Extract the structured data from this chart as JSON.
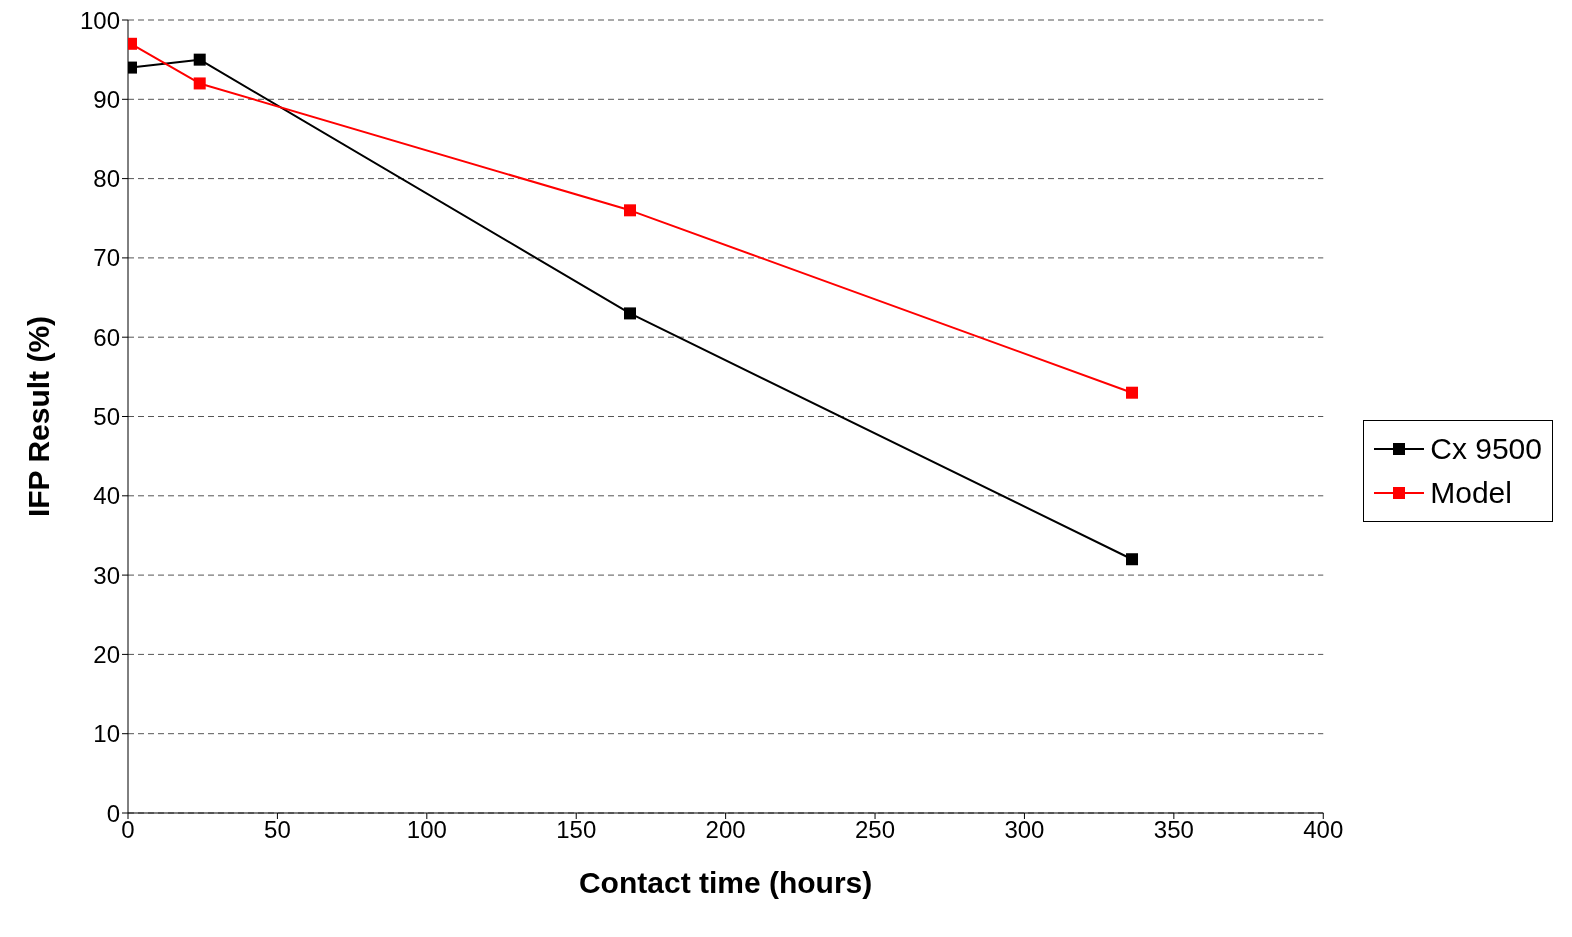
{
  "chart_data": {
    "type": "line",
    "xlabel": "Contact time (hours)",
    "ylabel": "IFP Result (%)",
    "xlim": [
      0,
      400
    ],
    "xticks": [
      0,
      50,
      100,
      150,
      200,
      250,
      300,
      350,
      400
    ],
    "ylim": [
      0,
      100
    ],
    "yticks": [
      0,
      10,
      20,
      30,
      40,
      50,
      60,
      70,
      80,
      90,
      100
    ],
    "x": [
      1,
      24,
      168,
      336
    ],
    "series": [
      {
        "name": "Cx 9500",
        "color": "#000000",
        "values": [
          94,
          95,
          63,
          32
        ]
      },
      {
        "name": "Model",
        "color": "#ff0000",
        "values": [
          97,
          92,
          76,
          53
        ]
      }
    ],
    "grid": "y",
    "legend": "right",
    "marker": "square",
    "line_style": "solid"
  }
}
